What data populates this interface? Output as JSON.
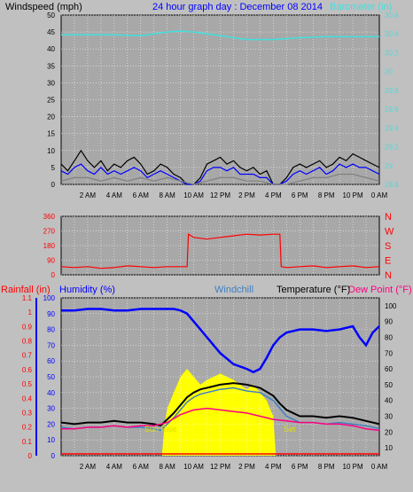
{
  "chart_data": [
    {
      "type": "line",
      "title": "24 hour graph day : December 08 2014",
      "left_axis_label": "Windspeed (mph)",
      "right_axis_label": "Barometer (in)",
      "x_tick_labels": [
        "2 AM",
        "4 AM",
        "6 AM",
        "8 AM",
        "10 AM",
        "12 PM",
        "2 PM",
        "4 PM",
        "6 PM",
        "8 PM",
        "10 PM",
        "0 AM"
      ],
      "x_range_hours": [
        0,
        24
      ],
      "left_ylim": [
        0,
        50
      ],
      "left_ticks": [
        "0",
        "5",
        "10",
        "15",
        "20",
        "25",
        "30",
        "35",
        "40",
        "45",
        "50"
      ],
      "right_ylim": [
        28.8,
        30.6
      ],
      "right_ticks": [
        "28.8",
        "29",
        "29.2",
        "29.4",
        "29.6",
        "29.8",
        "30",
        "30.2",
        "30.4",
        "30.6"
      ],
      "colors": {
        "barometer": "#40e0e0",
        "gust": "#000000",
        "avg": "#0000ff",
        "wind": "#808080",
        "title": "#0000ff"
      },
      "series": [
        {
          "key": "barometer",
          "axis": "right",
          "x": [
            0,
            2,
            4,
            6,
            8,
            9,
            10,
            12,
            14,
            16,
            18,
            20,
            22,
            24
          ],
          "y": [
            30.39,
            30.39,
            30.39,
            30.38,
            30.42,
            30.43,
            30.42,
            30.38,
            30.34,
            30.34,
            30.36,
            30.37,
            30.37,
            30.37
          ]
        },
        {
          "key": "gust",
          "axis": "left",
          "x": [
            0,
            0.5,
            1,
            1.5,
            2,
            2.5,
            3,
            3.5,
            4,
            4.5,
            5,
            5.5,
            6,
            6.5,
            7,
            7.5,
            8,
            8.5,
            9,
            9.5,
            10,
            10.5,
            11,
            11.5,
            12,
            12.5,
            13,
            13.5,
            14,
            14.5,
            15,
            15.5,
            16,
            16.5,
            17,
            17.5,
            18,
            18.5,
            19,
            19.5,
            20,
            20.5,
            21,
            21.5,
            22,
            22.5,
            23,
            23.5,
            24
          ],
          "y": [
            6,
            4,
            7,
            10,
            7,
            5,
            7,
            4,
            6,
            5,
            7,
            8,
            6,
            3,
            4,
            6,
            5,
            3,
            2,
            0,
            0,
            2,
            6,
            7,
            8,
            6,
            7,
            5,
            4,
            5,
            3,
            4,
            0,
            0,
            2,
            5,
            6,
            5,
            6,
            7,
            5,
            6,
            8,
            7,
            9,
            8,
            7,
            6,
            5
          ]
        },
        {
          "key": "avg",
          "axis": "left",
          "x": [
            0,
            0.5,
            1,
            1.5,
            2,
            2.5,
            3,
            3.5,
            4,
            4.5,
            5,
            5.5,
            6,
            6.5,
            7,
            7.5,
            8,
            8.5,
            9,
            9.5,
            10,
            10.5,
            11,
            11.5,
            12,
            12.5,
            13,
            13.5,
            14,
            14.5,
            15,
            15.5,
            16,
            16.5,
            17,
            17.5,
            18,
            18.5,
            19,
            19.5,
            20,
            20.5,
            21,
            21.5,
            22,
            22.5,
            23,
            23.5,
            24
          ],
          "y": [
            4,
            3,
            5,
            6,
            4,
            3,
            5,
            3,
            4,
            3,
            4,
            5,
            4,
            2,
            3,
            4,
            3,
            2,
            1,
            0,
            0,
            1,
            4,
            5,
            5,
            4,
            5,
            3,
            3,
            3,
            2,
            2,
            0,
            0,
            1,
            3,
            4,
            3,
            4,
            5,
            3,
            4,
            6,
            5,
            6,
            5,
            5,
            4,
            3
          ]
        },
        {
          "key": "wind",
          "axis": "left",
          "x": [
            0,
            1,
            2,
            3,
            4,
            5,
            6,
            7,
            8,
            9,
            10,
            11,
            12,
            13,
            14,
            15,
            16,
            17,
            18,
            19,
            20,
            21,
            22,
            23,
            24
          ],
          "y": [
            1,
            2,
            2,
            1,
            2,
            1,
            2,
            1,
            2,
            1,
            0,
            1,
            2,
            2,
            1,
            1,
            0,
            0,
            1,
            2,
            2,
            3,
            3,
            2,
            1
          ]
        }
      ]
    },
    {
      "type": "scatter",
      "left_ylim": [
        0,
        360
      ],
      "left_ticks": [
        "0",
        "90",
        "180",
        "270",
        "360"
      ],
      "right_labels": [
        "N",
        "W",
        "S",
        "E",
        "N"
      ],
      "x_range_hours": [
        0,
        24
      ],
      "colors": {
        "direction": "#ff0000"
      },
      "series": [
        {
          "key": "direction",
          "x": [
            0,
            1,
            2,
            3,
            4,
            5,
            6,
            7,
            8,
            9,
            9.5,
            9.6,
            10,
            11,
            12,
            13,
            14,
            15,
            16,
            16.5,
            16.6,
            17,
            18,
            19,
            20,
            21,
            22,
            23,
            24
          ],
          "y": [
            50,
            45,
            50,
            40,
            45,
            55,
            50,
            45,
            50,
            50,
            50,
            250,
            230,
            220,
            230,
            240,
            250,
            245,
            250,
            250,
            50,
            45,
            50,
            55,
            45,
            50,
            55,
            45,
            50
          ]
        }
      ]
    },
    {
      "type": "line",
      "labels": {
        "rainfall": "Rainfall (in)",
        "humidity": "Humidity (%)",
        "windchill": "Windchill",
        "temperature": "Temperature (°F)",
        "dewpoint": "Dew Point (°F)"
      },
      "x_tick_labels": [
        "2 AM",
        "4 AM",
        "6 AM",
        "8 AM",
        "10 AM",
        "12 PM",
        "2 PM",
        "4 PM",
        "6 PM",
        "8 PM",
        "10 PM",
        "0 AM"
      ],
      "x_range_hours": [
        0,
        24
      ],
      "rain_ylim": [
        0,
        1.1
      ],
      "rain_ticks": [
        "0",
        "0.1",
        "0.2",
        "0.3",
        "0.4",
        "0.5",
        "0.6",
        "0.7",
        "0.8",
        "0.9",
        "1",
        "1.1"
      ],
      "humidity_ylim": [
        0,
        100
      ],
      "humidity_ticks": [
        "0",
        "10",
        "20",
        "30",
        "40",
        "50",
        "60",
        "70",
        "80",
        "90",
        "100"
      ],
      "temp_ylim": [
        5,
        105
      ],
      "temp_ticks": [
        "10",
        "20",
        "30",
        "40",
        "50",
        "60",
        "70",
        "80",
        "90",
        "100"
      ],
      "annotations": {
        "sunrise": "Sun Rise",
        "sunset": "Set"
      },
      "solar": {
        "x": [
          7.6,
          7.8,
          8,
          8.5,
          9,
          9.5,
          10,
          10.5,
          11,
          11.5,
          12,
          12.5,
          13,
          13.5,
          14,
          14.5,
          15,
          15.5,
          16,
          16.2
        ],
        "y": [
          0,
          20,
          30,
          40,
          50,
          55,
          50,
          45,
          48,
          50,
          52,
          50,
          48,
          45,
          42,
          45,
          40,
          35,
          25,
          0
        ]
      },
      "colors": {
        "rainfall": "#ff0000",
        "humidity": "#0000ff",
        "windchill": "#4080c0",
        "temperature": "#000000",
        "dewpoint": "#ff0080",
        "solar": "#ffff00",
        "sunrise_text": "#e0e000"
      },
      "series": [
        {
          "key": "humidity",
          "axis": "humidity",
          "x": [
            0,
            1,
            2,
            3,
            4,
            5,
            6,
            7,
            8,
            8.5,
            9,
            9.5,
            10,
            10.5,
            11,
            12,
            13,
            14,
            14.5,
            15,
            15.5,
            16,
            16.5,
            17,
            18,
            19,
            20,
            21,
            22,
            22.5,
            23,
            23.5,
            24
          ],
          "y": [
            92,
            92,
            93,
            93,
            92,
            92,
            93,
            93,
            93,
            93,
            92,
            90,
            85,
            80,
            75,
            65,
            58,
            55,
            53,
            55,
            62,
            70,
            75,
            78,
            80,
            80,
            79,
            80,
            82,
            75,
            70,
            78,
            82
          ]
        },
        {
          "key": "temperature",
          "axis": "temp",
          "x": [
            0,
            1,
            2,
            3,
            4,
            5,
            6,
            7,
            7.5,
            8,
            8.5,
            9,
            9.5,
            10,
            10.5,
            11,
            12,
            13,
            14,
            15,
            16,
            16.5,
            17,
            18,
            19,
            20,
            21,
            22,
            23,
            24
          ],
          "y": [
            26,
            25,
            26,
            26,
            27,
            26,
            26,
            25,
            24,
            28,
            32,
            37,
            42,
            45,
            47,
            48,
            50,
            51,
            50,
            48,
            43,
            38,
            34,
            30,
            30,
            29,
            30,
            29,
            27,
            25
          ]
        },
        {
          "key": "windchill",
          "axis": "temp",
          "x": [
            0,
            1,
            2,
            3,
            4,
            5,
            6,
            7,
            7.5,
            8,
            8.5,
            9,
            9.5,
            10,
            10.5,
            11,
            12,
            13,
            14,
            15,
            16,
            16.5,
            17,
            18,
            19,
            20,
            21,
            22,
            23,
            24
          ],
          "y": [
            23,
            22,
            23,
            23,
            24,
            23,
            23,
            22,
            21,
            25,
            29,
            34,
            39,
            42,
            44,
            45,
            47,
            48,
            46,
            45,
            40,
            35,
            30,
            26,
            26,
            25,
            26,
            25,
            24,
            22
          ]
        },
        {
          "key": "dewpoint",
          "axis": "temp",
          "x": [
            0,
            1,
            2,
            3,
            4,
            5,
            6,
            7,
            8,
            9,
            10,
            11,
            12,
            13,
            14,
            15,
            16,
            17,
            18,
            19,
            20,
            21,
            22,
            23,
            24
          ],
          "y": [
            22,
            22,
            23,
            23,
            24,
            23,
            24,
            24,
            26,
            31,
            34,
            35,
            34,
            33,
            32,
            30,
            28,
            27,
            26,
            26,
            25,
            25,
            24,
            22,
            21
          ]
        },
        {
          "key": "rainfall",
          "axis": "rain",
          "x": [
            0,
            24
          ],
          "y": [
            0,
            0
          ]
        }
      ]
    }
  ]
}
